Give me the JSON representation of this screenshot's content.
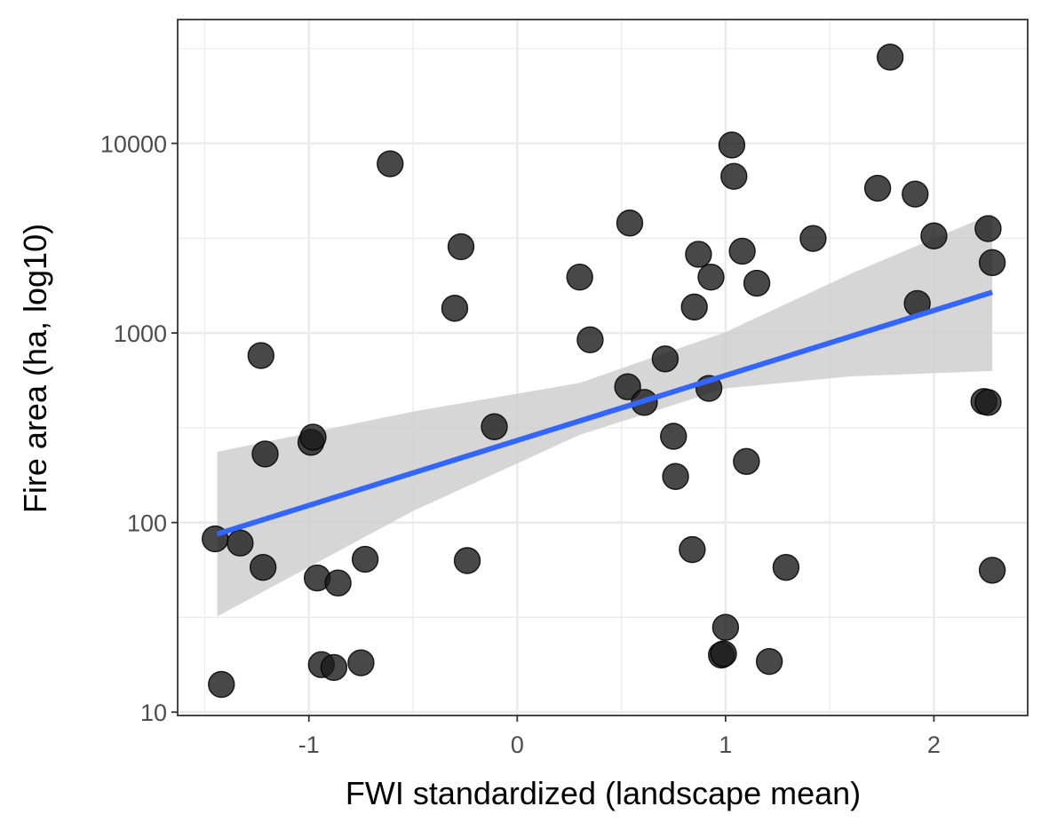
{
  "chart_data": {
    "type": "scatter",
    "xlabel": "FWI standardized (landscape mean)",
    "ylabel": "Fire area (ha, log10)",
    "xlim": [
      -1.63,
      2.45
    ],
    "ylim": [
      9.6,
      45000
    ],
    "y_scale": "log10",
    "grid": true,
    "x_ticks": [
      -1,
      0,
      1,
      2
    ],
    "x_tick_labels": [
      "-1",
      "0",
      "1",
      "2"
    ],
    "y_ticks": [
      10,
      100,
      1000,
      10000
    ],
    "y_tick_labels": [
      "10",
      "100",
      "1000",
      "10000"
    ],
    "colors": {
      "points": "#1a1a1a",
      "trend_line": "#3366ff",
      "confidence_band": "#cccccc",
      "grid": "#ebebeb",
      "panel_border": "#333333"
    },
    "series": [
      {
        "points": [
          {
            "x": -1.45,
            "y": 82
          },
          {
            "x": -1.42,
            "y": 14
          },
          {
            "x": -1.33,
            "y": 78
          },
          {
            "x": -1.23,
            "y": 760
          },
          {
            "x": -1.22,
            "y": 58
          },
          {
            "x": -1.21,
            "y": 230
          },
          {
            "x": -0.99,
            "y": 265
          },
          {
            "x": -0.98,
            "y": 282
          },
          {
            "x": -0.96,
            "y": 51
          },
          {
            "x": -0.94,
            "y": 17.8
          },
          {
            "x": -0.88,
            "y": 17.2
          },
          {
            "x": -0.86,
            "y": 48
          },
          {
            "x": -0.75,
            "y": 18.2
          },
          {
            "x": -0.73,
            "y": 64
          },
          {
            "x": -0.61,
            "y": 7800
          },
          {
            "x": -0.3,
            "y": 1350
          },
          {
            "x": -0.27,
            "y": 2850
          },
          {
            "x": -0.24,
            "y": 63
          },
          {
            "x": -0.11,
            "y": 320
          },
          {
            "x": 0.3,
            "y": 1970
          },
          {
            "x": 0.35,
            "y": 920
          },
          {
            "x": 0.53,
            "y": 520
          },
          {
            "x": 0.54,
            "y": 3800
          },
          {
            "x": 0.61,
            "y": 430
          },
          {
            "x": 0.71,
            "y": 730
          },
          {
            "x": 0.75,
            "y": 285
          },
          {
            "x": 0.76,
            "y": 175
          },
          {
            "x": 0.84,
            "y": 72
          },
          {
            "x": 0.85,
            "y": 1370
          },
          {
            "x": 0.87,
            "y": 2600
          },
          {
            "x": 0.93,
            "y": 1970
          },
          {
            "x": 0.92,
            "y": 510
          },
          {
            "x": 0.98,
            "y": 20
          },
          {
            "x": 0.99,
            "y": 20.3
          },
          {
            "x": 1.0,
            "y": 28
          },
          {
            "x": 1.03,
            "y": 9800
          },
          {
            "x": 1.04,
            "y": 6700
          },
          {
            "x": 1.08,
            "y": 2700
          },
          {
            "x": 1.1,
            "y": 210
          },
          {
            "x": 1.15,
            "y": 1830
          },
          {
            "x": 1.21,
            "y": 18.5
          },
          {
            "x": 1.29,
            "y": 58
          },
          {
            "x": 1.42,
            "y": 3150
          },
          {
            "x": 1.73,
            "y": 5800
          },
          {
            "x": 1.79,
            "y": 28500
          },
          {
            "x": 1.91,
            "y": 5400
          },
          {
            "x": 1.92,
            "y": 1430
          },
          {
            "x": 2.0,
            "y": 3250
          },
          {
            "x": 2.24,
            "y": 435
          },
          {
            "x": 2.26,
            "y": 3550
          },
          {
            "x": 2.26,
            "y": 430
          },
          {
            "x": 2.28,
            "y": 2350
          },
          {
            "x": 2.28,
            "y": 56
          }
        ]
      }
    ],
    "trend": {
      "x_start": -1.44,
      "y_start": 87,
      "x_end": 2.28,
      "y_end": 1640,
      "band": [
        {
          "x": -1.44,
          "lower": 32,
          "upper": 236
        },
        {
          "x": -0.5,
          "lower": 115,
          "upper": 385
        },
        {
          "x": 0.3,
          "lower": 290,
          "upper": 545
        },
        {
          "x": 1.0,
          "lower": 510,
          "upper": 1010
        },
        {
          "x": 1.6,
          "lower": 590,
          "upper": 2050
        },
        {
          "x": 2.28,
          "lower": 630,
          "upper": 4250
        }
      ]
    }
  }
}
